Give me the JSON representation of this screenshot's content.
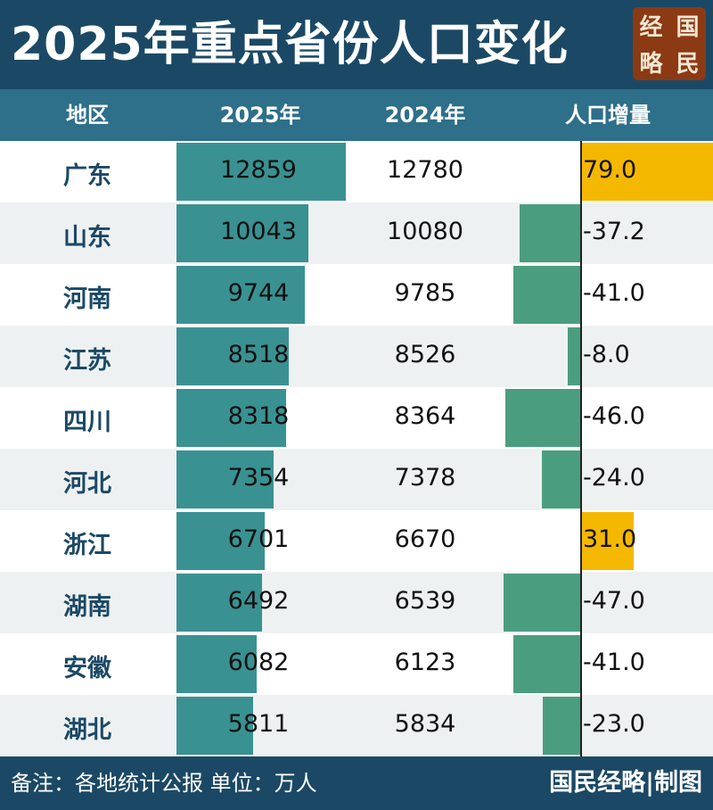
{
  "header": {
    "title": "2025年重点省份人口变化",
    "logo_chars": [
      "经",
      "国",
      "略",
      "民"
    ]
  },
  "columns": [
    "地区",
    "2025年",
    "2024年",
    "人口增量"
  ],
  "chart_data": {
    "type": "table",
    "title": "2025年重点省份人口变化",
    "columns": [
      "地区",
      "2025年",
      "2024年",
      "人口增量"
    ],
    "categories": [
      "广东",
      "山东",
      "河南",
      "江苏",
      "四川",
      "河北",
      "浙江",
      "湖南",
      "安徽",
      "湖北"
    ],
    "series": [
      {
        "name": "2025年",
        "values": [
          12859,
          10043,
          9744,
          8518,
          8318,
          7354,
          6701,
          6492,
          6082,
          5811
        ]
      },
      {
        "name": "2024年",
        "values": [
          12780,
          10080,
          9785,
          8526,
          8364,
          7378,
          6670,
          6539,
          6123,
          5834
        ]
      },
      {
        "name": "人口增量",
        "values": [
          79.0,
          -37.2,
          -41.0,
          -8.0,
          -46.0,
          -24.0,
          31.0,
          -47.0,
          -41.0,
          -23.0
        ]
      }
    ],
    "increment_labels": [
      "79.0",
      "-37.2",
      "-41.0",
      "-8.0",
      "-46.0",
      "-24.0",
      "31.0",
      "-47.0",
      "-41.0",
      "-23.0"
    ],
    "colors": {
      "bar_2025": "#3a9192",
      "decrease": "#4a9e7f",
      "increase": "#f5b800"
    }
  },
  "footer": {
    "note": "备注：各地统计公报 单位：万人",
    "credit": "国民经略|制图"
  }
}
